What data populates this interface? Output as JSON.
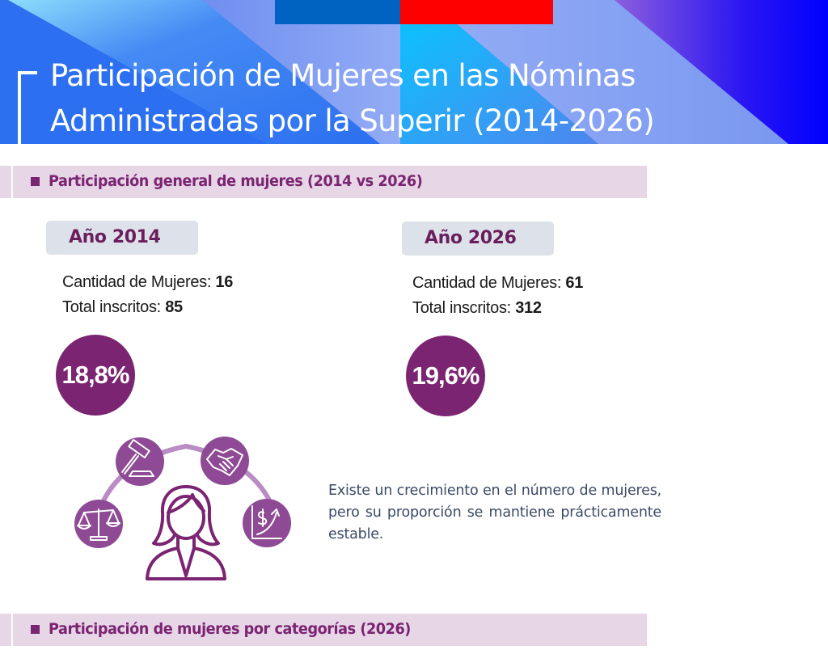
{
  "header": {
    "title_line1": "Participación de Mujeres en las Nóminas",
    "title_line2": "Administradas por la Superir (2014-2026)",
    "colors": {
      "flag_blue": "#0063c2",
      "flag_red": "#ff0000",
      "banner_blue": "#2c6ff0",
      "banner_deep": "#0000ff"
    }
  },
  "sections": [
    {
      "label": "Participación general de mujeres (2014 vs 2026)"
    },
    {
      "label": "Participación de mujeres por categorías (2026)"
    }
  ],
  "years": [
    {
      "label": "Año 2014",
      "women_label": "Cantidad de Mujeres:",
      "women_value": "16",
      "total_label": "Total inscritos:",
      "total_value": "85",
      "percentage": "18,8%"
    },
    {
      "label": "Año 2026",
      "women_label": "Cantidad de Mujeres:",
      "women_value": "61",
      "total_label": "Total inscritos:",
      "total_value": "312",
      "percentage": "19,6%"
    }
  ],
  "illustration": {
    "center": "woman-avatar-icon",
    "satellites": [
      "scales-icon",
      "gavel-icon",
      "handshake-icon",
      "growth-chart-icon"
    ]
  },
  "description": "Existe un crecimiento en el número de mujeres, pero su proporción se mantiene prácticamente estable.",
  "theme": {
    "accent_purple": "#7b2472",
    "section_bg": "#e6d6e6",
    "pill_bg": "#dde2ea",
    "icon_purple": "#8e4a94"
  }
}
